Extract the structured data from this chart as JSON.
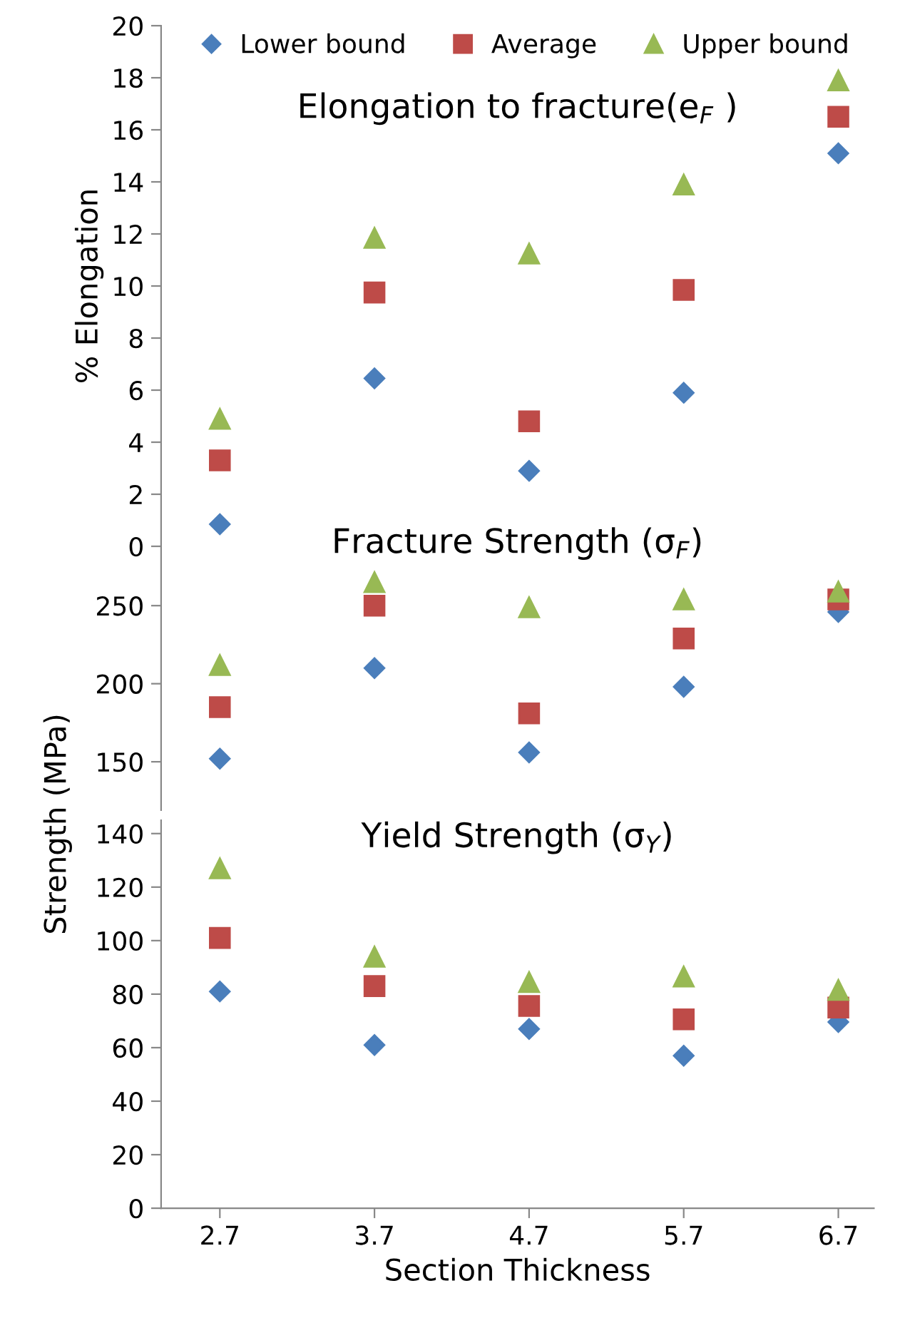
{
  "chart_data": [
    {
      "type": "scatter",
      "title": "Elongation to fracture(e$_{F}$ )",
      "ylabel": "% Elongation",
      "x": [
        2.7,
        3.7,
        4.7,
        5.7,
        6.7
      ],
      "ylim": [
        0,
        20
      ],
      "yticks": [
        0,
        2,
        4,
        6,
        8,
        10,
        12,
        14,
        16,
        18,
        20
      ],
      "tick_labels": "y",
      "grid": false,
      "legend": "top",
      "series": [
        {
          "name": "Lower bound",
          "color": "#4a7ebb",
          "marker": "diamond",
          "values": [
            0.85,
            6.45,
            2.9,
            5.9,
            15.1
          ]
        },
        {
          "name": "Average",
          "color": "#be4b48",
          "marker": "square",
          "values": [
            3.3,
            9.75,
            4.8,
            9.85,
            16.5
          ]
        },
        {
          "name": "Upper bound",
          "color": "#98b954",
          "marker": "triangle",
          "values": [
            4.9,
            11.85,
            11.25,
            13.9,
            17.9
          ]
        }
      ]
    },
    {
      "type": "scatter",
      "title": "Fracture Strength (σ$_{F}$)",
      "x": [
        2.7,
        3.7,
        4.7,
        5.7,
        6.7
      ],
      "ylim": [
        119,
        288
      ],
      "yticks": [
        150,
        200,
        250
      ],
      "tick_labels": "y",
      "grid": false,
      "series": [
        {
          "color": "#4a7ebb",
          "marker": "diamond",
          "values": [
            152,
            210,
            156,
            198,
            246
          ]
        },
        {
          "color": "#be4b48",
          "marker": "square",
          "values": [
            185,
            250,
            181,
            229,
            254
          ]
        },
        {
          "color": "#98b954",
          "marker": "triangle",
          "values": [
            212,
            265,
            249,
            254,
            259
          ]
        }
      ]
    },
    {
      "type": "scatter",
      "title": "Yield Strength (σ$_{Y}$)",
      "ylabel": "Strength (MPa)",
      "xlabel": "Section Thickness",
      "x": [
        2.7,
        3.7,
        4.7,
        5.7,
        6.7
      ],
      "xlim": [
        2.32,
        6.93
      ],
      "xticks": [
        2.7,
        3.7,
        4.7,
        5.7,
        6.7
      ],
      "ylim": [
        0,
        145
      ],
      "yticks": [
        0,
        20,
        40,
        60,
        80,
        100,
        120,
        140
      ],
      "grid": false,
      "series": [
        {
          "color": "#4a7ebb",
          "marker": "diamond",
          "values": [
            81,
            61,
            67,
            57,
            69.6
          ]
        },
        {
          "color": "#be4b48",
          "marker": "square",
          "values": [
            101,
            83,
            75.6,
            70.6,
            75
          ]
        },
        {
          "color": "#98b954",
          "marker": "triangle",
          "values": [
            127,
            94,
            84.5,
            86.6,
            81.6
          ]
        }
      ]
    }
  ]
}
